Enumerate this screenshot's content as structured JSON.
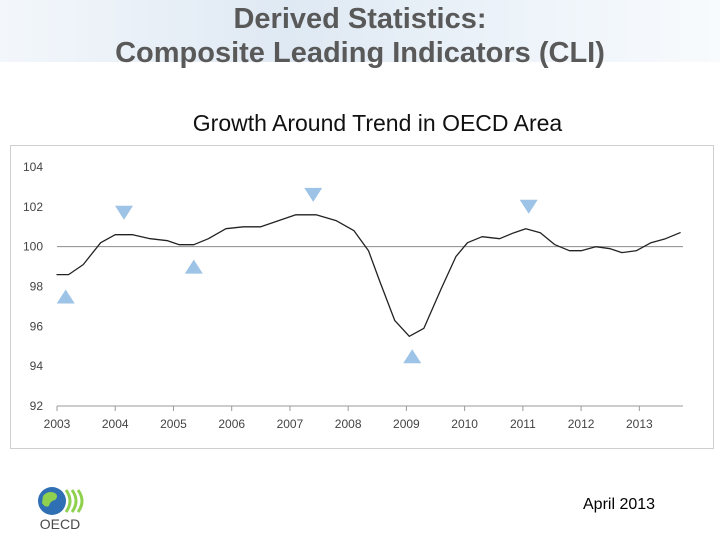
{
  "slide": {
    "title_line1": "Derived Statistics:",
    "title_line2": "Composite Leading Indicators (CLI)",
    "subtitle": "Growth Around Trend in OECD Area",
    "date": "April 2013",
    "logo_text": "OECD"
  },
  "colors": {
    "line": "#222222",
    "trend_line": "#8c8c8c",
    "marker": "#9dc3e6",
    "title": "#595959"
  },
  "icons": {
    "logo": "oecd-globe-logo"
  },
  "chart_data": {
    "type": "line",
    "title": "",
    "xlabel": "",
    "ylabel": "",
    "x_ticks": [
      "2003",
      "2004",
      "2005",
      "2006",
      "2007",
      "2008",
      "2009",
      "2010",
      "2011",
      "2012",
      "2013"
    ],
    "y_ticks": [
      "104",
      "102",
      "100",
      "98",
      "96",
      "94",
      "92"
    ],
    "xlim": [
      2003,
      2013.75
    ],
    "ylim": [
      92,
      104
    ],
    "trend_value": 100,
    "grid": false,
    "series": [
      {
        "values": [
          [
            2003.0,
            98.6
          ],
          [
            2003.2,
            98.6
          ],
          [
            2003.45,
            99.1
          ],
          [
            2003.75,
            100.2
          ],
          [
            2004.0,
            100.6
          ],
          [
            2004.3,
            100.6
          ],
          [
            2004.6,
            100.4
          ],
          [
            2004.9,
            100.3
          ],
          [
            2005.1,
            100.1
          ],
          [
            2005.35,
            100.1
          ],
          [
            2005.6,
            100.4
          ],
          [
            2005.9,
            100.9
          ],
          [
            2006.2,
            101.0
          ],
          [
            2006.5,
            101.0
          ],
          [
            2006.8,
            101.3
          ],
          [
            2007.1,
            101.6
          ],
          [
            2007.45,
            101.6
          ],
          [
            2007.8,
            101.3
          ],
          [
            2008.1,
            100.8
          ],
          [
            2008.35,
            99.8
          ],
          [
            2008.55,
            98.2
          ],
          [
            2008.8,
            96.3
          ],
          [
            2009.05,
            95.5
          ],
          [
            2009.3,
            95.9
          ],
          [
            2009.6,
            97.9
          ],
          [
            2009.85,
            99.5
          ],
          [
            2010.05,
            100.2
          ],
          [
            2010.3,
            100.5
          ],
          [
            2010.6,
            100.4
          ],
          [
            2010.85,
            100.7
          ],
          [
            2011.05,
            100.9
          ],
          [
            2011.3,
            100.7
          ],
          [
            2011.55,
            100.1
          ],
          [
            2011.8,
            99.8
          ],
          [
            2012.0,
            99.8
          ],
          [
            2012.25,
            100.0
          ],
          [
            2012.5,
            99.9
          ],
          [
            2012.7,
            99.7
          ],
          [
            2012.95,
            99.8
          ],
          [
            2013.2,
            100.2
          ],
          [
            2013.45,
            100.4
          ],
          [
            2013.7,
            100.7
          ]
        ]
      }
    ],
    "markers": [
      {
        "type": "trough",
        "x": 2003.15,
        "y": 97.5
      },
      {
        "type": "peak",
        "x": 2004.15,
        "y": 101.7
      },
      {
        "type": "trough",
        "x": 2005.35,
        "y": 99.0
      },
      {
        "type": "peak",
        "x": 2007.4,
        "y": 102.6
      },
      {
        "type": "trough",
        "x": 2009.1,
        "y": 94.5
      },
      {
        "type": "peak",
        "x": 2011.1,
        "y": 102.0
      }
    ]
  }
}
